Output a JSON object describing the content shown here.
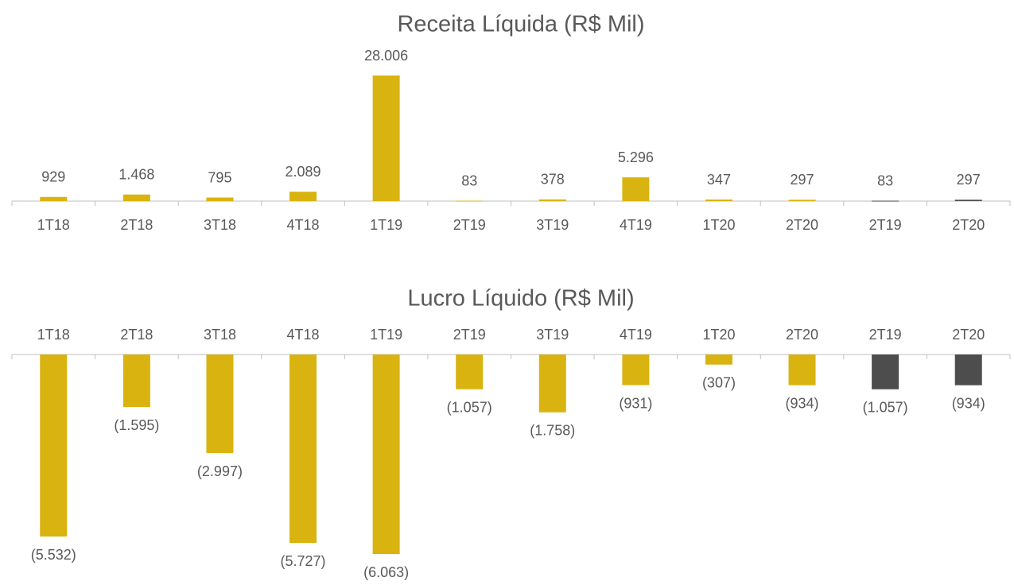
{
  "chart_data": [
    {
      "type": "bar",
      "title": "Receita Líquida (R$ Mil)",
      "categories": [
        "1T18",
        "2T18",
        "3T18",
        "4T18",
        "1T19",
        "2T19",
        "3T19",
        "4T19",
        "1T20",
        "2T20",
        "2T19",
        "2T20"
      ],
      "values": [
        929,
        1468,
        795,
        2089,
        28006,
        83,
        378,
        5296,
        347,
        297,
        83,
        297
      ],
      "value_labels": [
        "929",
        "1.468",
        "795",
        "2.089",
        "28.006",
        "83",
        "378",
        "5.296",
        "347",
        "297",
        "83",
        "297"
      ],
      "colors": [
        "#d9b310",
        "#d9b310",
        "#d9b310",
        "#d9b310",
        "#d9b310",
        "#d9b310",
        "#d9b310",
        "#d9b310",
        "#d9b310",
        "#d9b310",
        "#4d4d4d",
        "#4d4d4d"
      ]
    },
    {
      "type": "bar",
      "title": "Lucro Líquido (R$ Mil)",
      "categories": [
        "1T18",
        "2T18",
        "3T18",
        "4T18",
        "1T19",
        "2T19",
        "3T19",
        "4T19",
        "1T20",
        "2T20",
        "2T19",
        "2T20"
      ],
      "values": [
        -5532,
        -1595,
        -2997,
        -5727,
        -6063,
        -1057,
        -1758,
        -931,
        -307,
        -934,
        -1057,
        -934
      ],
      "value_labels": [
        "(5.532)",
        "(1.595)",
        "(2.997)",
        "(5.727)",
        "(6.063)",
        "(1.057)",
        "(1.758)",
        "(931)",
        "(307)",
        "(934)",
        "(1.057)",
        "(934)"
      ],
      "colors": [
        "#d9b310",
        "#d9b310",
        "#d9b310",
        "#d9b310",
        "#d9b310",
        "#d9b310",
        "#d9b310",
        "#d9b310",
        "#d9b310",
        "#d9b310",
        "#4d4d4d",
        "#4d4d4d"
      ]
    }
  ]
}
